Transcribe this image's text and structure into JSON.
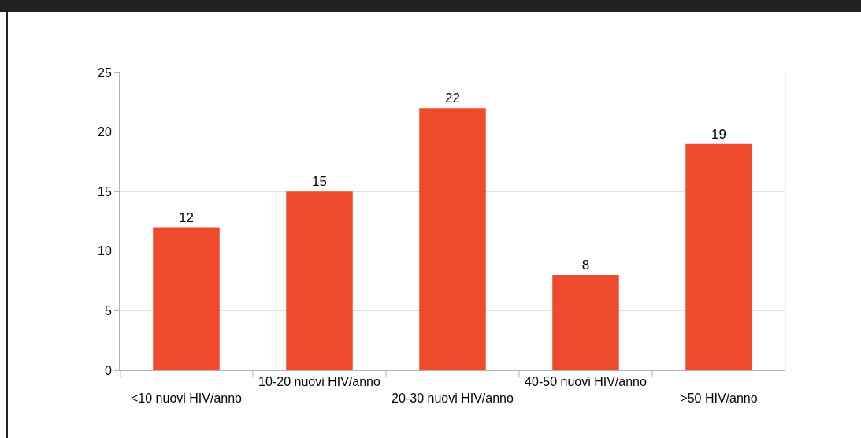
{
  "chart_data": {
    "type": "bar",
    "categories": [
      "<10 nuovi HIV/anno",
      "10-20 nuovi HIV/anno",
      "20-30 nuovi HIV/anno",
      "40-50 nuovi HIV/anno",
      ">50 HIV/anno"
    ],
    "values": [
      12,
      15,
      22,
      8,
      19
    ],
    "color": "#f04a2c",
    "ylim": [
      0,
      25
    ],
    "yticks": [
      0,
      5,
      10,
      15,
      20,
      25
    ],
    "grid": "y",
    "data_labels": true
  }
}
